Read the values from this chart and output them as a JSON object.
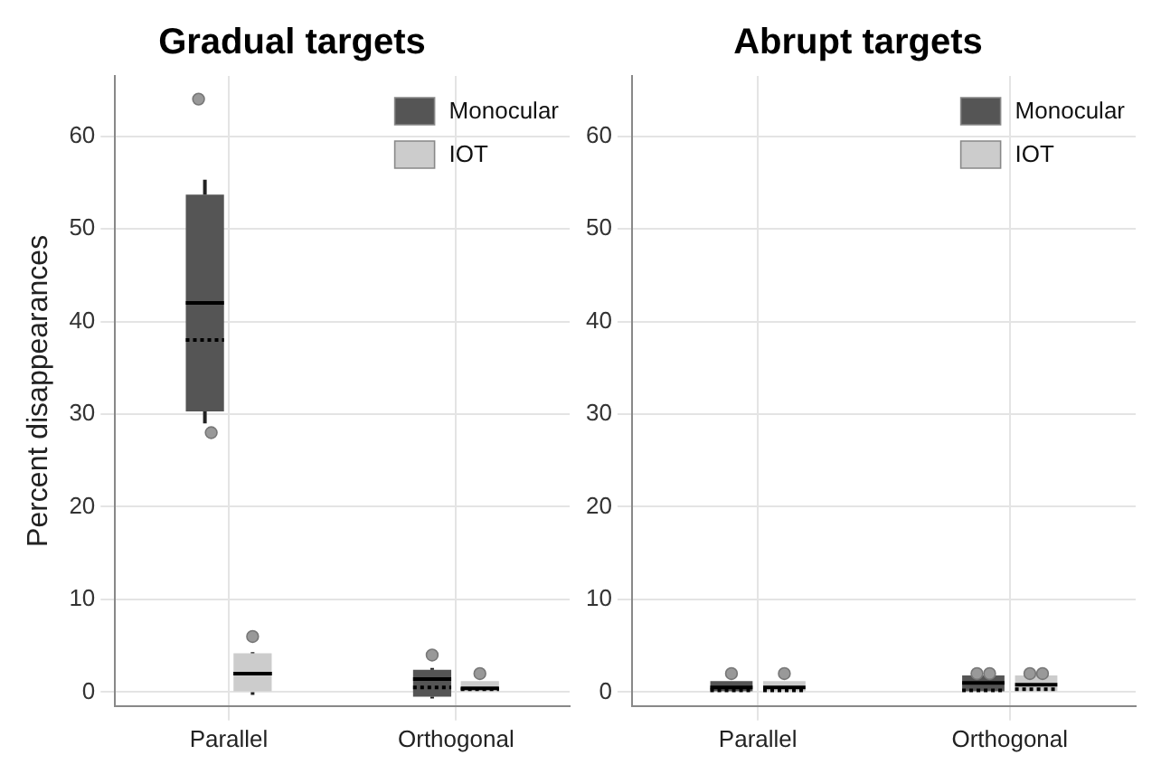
{
  "chart_data": [
    {
      "type": "box",
      "title": "Gradual targets",
      "ylabel": "Percent disappearances",
      "categories": [
        "Parallel",
        "Orthogonal"
      ],
      "ylim": [
        -1.5,
        66.5
      ],
      "yticks": [
        0,
        10,
        20,
        30,
        40,
        50,
        60
      ],
      "grid": true,
      "legend": "top right",
      "series": [
        {
          "name": "Monocular",
          "color": "#555555",
          "boxes": [
            {
              "low": 29,
              "q1": 30.3,
              "median": 42,
              "q3": 53.7,
              "high": 55.3,
              "mean": 38,
              "outliers": [
                64,
                28
              ]
            },
            {
              "low": -0.7,
              "q1": -0.5,
              "median": 1.4,
              "q3": 2.4,
              "high": 2.6,
              "mean": 0.5,
              "outliers": [
                4
              ]
            }
          ]
        },
        {
          "name": "IOT",
          "color": "#cccccc",
          "boxes": [
            {
              "low": -0.3,
              "q1": 0,
              "median": 2,
              "q3": 4.2,
              "high": 4.3,
              "mean": 2,
              "outliers": [
                6
              ]
            },
            {
              "low": 0,
              "q1": 0,
              "median": 0.4,
              "q3": 1.2,
              "high": 1.2,
              "mean": 0.3,
              "outliers": [
                2
              ]
            }
          ]
        }
      ]
    },
    {
      "type": "box",
      "title": "Abrupt targets",
      "categories": [
        "Parallel",
        "Orthogonal"
      ],
      "ylim": [
        -1.5,
        66.5
      ],
      "yticks": [
        0,
        10,
        20,
        30,
        40,
        50,
        60
      ],
      "grid": true,
      "legend": "top right",
      "series": [
        {
          "name": "Monocular",
          "color": "#555555",
          "boxes": [
            {
              "low": 0,
              "q1": 0,
              "median": 0.5,
              "q3": 1.2,
              "high": 1.2,
              "mean": 0.2,
              "outliers": [
                2
              ]
            },
            {
              "low": 0,
              "q1": 0,
              "median": 1,
              "q3": 1.8,
              "high": 1.8,
              "mean": 0.2,
              "outliers": [
                2,
                2
              ]
            }
          ]
        },
        {
          "name": "IOT",
          "color": "#cccccc",
          "boxes": [
            {
              "low": 0,
              "q1": 0,
              "median": 0.5,
              "q3": 1.2,
              "high": 1.2,
              "mean": 0.2,
              "outliers": [
                2
              ]
            },
            {
              "low": 0,
              "q1": 0,
              "median": 0.8,
              "q3": 1.8,
              "high": 1.8,
              "mean": 0.3,
              "outliers": [
                2,
                2
              ]
            }
          ]
        }
      ]
    }
  ]
}
